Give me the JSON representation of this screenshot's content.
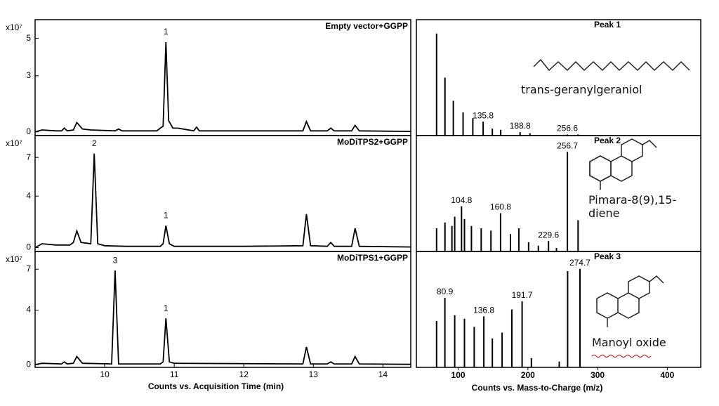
{
  "chart_data": [
    {
      "type": "line",
      "series_name": "Empty vector+GGPP",
      "y_multiplier": "x10⁷",
      "ylim": [
        -0.2,
        6
      ],
      "yticks": [
        0,
        3,
        5
      ],
      "xlim": [
        9,
        14.4
      ],
      "x": [
        9.0,
        9.1,
        9.3,
        9.38,
        9.42,
        9.46,
        9.55,
        9.6,
        9.68,
        9.8,
        10.15,
        10.2,
        10.25,
        10.75,
        10.8,
        10.84,
        10.88,
        10.92,
        10.98,
        11.05,
        11.28,
        11.32,
        11.36,
        12.85,
        12.9,
        12.96,
        13.2,
        13.25,
        13.3,
        13.55,
        13.6,
        13.66,
        14.4
      ],
      "values": [
        0,
        0.1,
        0.05,
        0.05,
        0.2,
        0.05,
        0.1,
        0.5,
        0.15,
        0.1,
        0.05,
        0.15,
        0.05,
        0.05,
        0.2,
        0.3,
        4.8,
        0.6,
        0.2,
        0.2,
        0.05,
        0.25,
        0.05,
        0.05,
        0.55,
        0.05,
        0.05,
        0.2,
        0.05,
        0.05,
        0.35,
        0.05,
        0.02
      ],
      "color": "#000000",
      "annotations": [
        {
          "text": "1",
          "x": 10.88,
          "y": 4.8
        }
      ]
    },
    {
      "type": "line",
      "series_name": "MoDiTPS2+GGPP",
      "y_multiplier": "x10⁷",
      "ylim": [
        -0.3,
        8.7
      ],
      "yticks": [
        0,
        4,
        7
      ],
      "xlim": [
        9,
        14.4
      ],
      "x": [
        9.0,
        9.1,
        9.3,
        9.5,
        9.55,
        9.6,
        9.66,
        9.8,
        9.85,
        9.9,
        10.0,
        10.3,
        10.8,
        10.84,
        10.88,
        10.93,
        11.0,
        12.0,
        12.85,
        12.9,
        12.96,
        13.2,
        13.25,
        13.3,
        13.55,
        13.6,
        13.66,
        14.4
      ],
      "values": [
        0,
        0.3,
        0.2,
        0.2,
        0.4,
        1.3,
        0.4,
        0.3,
        7.3,
        0.3,
        0.15,
        0.1,
        0.1,
        0.3,
        1.7,
        0.3,
        0.1,
        0.1,
        0.15,
        2.6,
        0.15,
        0.1,
        0.4,
        0.1,
        0.1,
        1.5,
        0.1,
        0.05
      ],
      "color": "#000000",
      "annotations": [
        {
          "text": "2",
          "x": 9.85,
          "y": 7.3
        },
        {
          "text": "1",
          "x": 10.88,
          "y": 1.7
        }
      ]
    },
    {
      "type": "line",
      "series_name": "MoDiTPS1+GGPP",
      "y_multiplier": "x10⁷",
      "ylim": [
        -0.2,
        8.3
      ],
      "yticks": [
        0,
        4,
        7
      ],
      "xlim": [
        9,
        14.4
      ],
      "x": [
        9.0,
        9.1,
        9.38,
        9.42,
        9.46,
        9.55,
        9.6,
        9.68,
        10.1,
        10.15,
        10.2,
        10.8,
        10.84,
        10.88,
        10.93,
        11.0,
        12.85,
        12.9,
        12.96,
        13.2,
        13.25,
        13.3,
        13.55,
        13.6,
        13.66,
        14.4
      ],
      "values": [
        0,
        0.1,
        0.05,
        0.2,
        0.05,
        0.1,
        0.6,
        0.1,
        0.05,
        6.9,
        0.05,
        0.05,
        0.2,
        3.4,
        0.2,
        0.1,
        0.05,
        1.3,
        0.05,
        0.05,
        0.2,
        0.05,
        0.05,
        0.6,
        0.05,
        0.02
      ],
      "color": "#000000",
      "annotations": [
        {
          "text": "3",
          "x": 10.15,
          "y": 6.9
        },
        {
          "text": "1",
          "x": 10.88,
          "y": 3.4
        }
      ],
      "xticks": [
        10,
        11,
        12,
        13,
        14
      ],
      "xlabel": "Counts vs. Acquisition Time (min)"
    },
    {
      "type": "stem",
      "title": "Peak 1",
      "compound": "trans-geranylgeraniol",
      "xlim": [
        40,
        448
      ],
      "ylim": [
        0,
        100
      ],
      "color": "#000000",
      "x": [
        69,
        81,
        93,
        107,
        121,
        135.8,
        149,
        161,
        188.8,
        203,
        256.6,
        272
      ],
      "values": [
        88,
        50,
        30,
        20,
        15,
        12,
        6,
        5,
        3,
        2,
        1,
        1
      ],
      "annotations": [
        135.8,
        188.8,
        256.6
      ]
    },
    {
      "type": "stem",
      "title": "Peak 2",
      "compound": "Pimara-8(9),15-diene",
      "xlim": [
        40,
        448
      ],
      "ylim": [
        0,
        100
      ],
      "color": "#000000",
      "x": [
        69,
        81,
        91,
        95,
        104.8,
        109,
        119,
        133,
        147,
        160.8,
        175,
        187,
        201,
        215,
        229.6,
        241,
        256.7,
        272
      ],
      "values": [
        20,
        25,
        22,
        30,
        39,
        28,
        22,
        20,
        18,
        33,
        15,
        20,
        8,
        5,
        9,
        3,
        86,
        27
      ],
      "annotations": [
        104.8,
        160.8,
        229.6,
        256.7
      ]
    },
    {
      "type": "stem",
      "title": "Peak 3",
      "compound": "Manoyl oxide",
      "xlim": [
        40,
        448
      ],
      "ylim": [
        0,
        100
      ],
      "color": "#000000",
      "x": [
        69,
        80.9,
        95,
        109,
        123,
        136.8,
        149,
        163,
        177,
        191.7,
        205,
        245,
        257,
        274.7
      ],
      "values": [
        40,
        60,
        45,
        42,
        35,
        44,
        25,
        30,
        50,
        57,
        8,
        5,
        83,
        85
      ],
      "annotations": [
        80.9,
        136.8,
        191.7,
        274.7
      ],
      "xticks": [
        100,
        200,
        300,
        400
      ],
      "xlabel": "Counts vs. Mass-to-Charge (m/z)"
    }
  ]
}
